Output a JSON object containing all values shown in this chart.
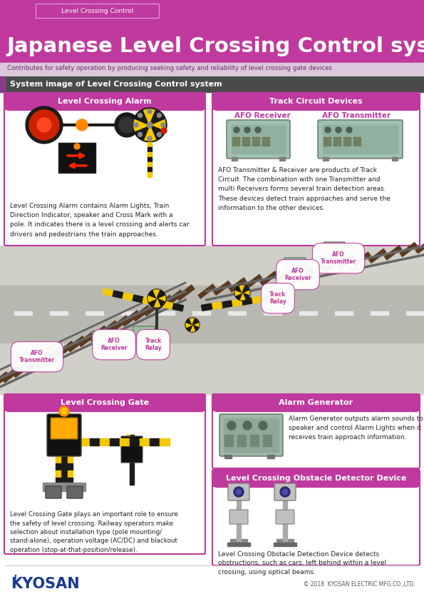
{
  "title": "Japanese Level Crossing Control system",
  "subtitle": "Contributes for safety operation by producing seeking safety and reliability of level crossing gate devices",
  "header_tag": "Level Crossing Control",
  "header_bg": "#c0399e",
  "subtitle_bg": "#e8d5e8",
  "system_bar_text": "System image of Level Crossing Control system",
  "system_bar_bg": "#4a4a4a",
  "system_bar_accent": "#8b3a8b",
  "box_border": "#c0399e",
  "box_title_bg": "#c0399e",
  "box_title_color": "#ffffff",
  "section1_title": "Level Crossing Alarm",
  "section1_text": "Level Crossing Alarm contains Alarm Lights, Train\nDirection Indicator, speaker and Cross Mark with a\npole. It indicates there is a level crossing and alerts car\ndrivers and pedestrians the train approaches.",
  "section2_title": "Track Circuit Devices",
  "section2_label1": "AFO Receiver",
  "section2_label2": "AFO Transmitter",
  "section2_text": "AFO Transmitter & Receiver are products of Track\nCircuit. The combination with one Transmitter and\nmulti Receivers forms several train detection areas.\nThese devices detect train approaches and serve the\ninformation to the other devices.",
  "section3_title": "Level Crossing Gate",
  "section3_text": "Level Crossing Gate plays an important role to ensure\nthe safety of level crossing. Railway operators make\nselection about installation type (pole mounting/\nstand-alone), operation voltage (AC/DC) and blackout\noperation (stop-at-that-position/release).",
  "section4_title": "Alarm Generator",
  "section4_text": "Alarm Generator outputs alarm sounds to\nspeaker and control Alarm Lights when it\nreceives train approach information.",
  "section5_title": "Level Crossing Obstacle Detector Device",
  "section5_text": "Level Crossing Obstacle Detection Device detects\nobstructions, such as cars, left behind within a level\ncrossing, using optical beams.",
  "footer_brand": "KYOSAN",
  "footer_brand_color": "#1a3a8f",
  "footer_copy": "© 2018  KYOSAN ELECTRIC MFG.CO.,LTD.",
  "footer_copy_color": "#555555",
  "label_afo_receiver": "AFO\nReceiver",
  "label_track_relay1": "Track\nRelay",
  "label_afo_transmitter1": "AFO\nTransmitter",
  "label_afo_receiver2": "AFO\nReceiver",
  "label_track_relay2": "Track\nRelay",
  "label_color": "#c0399e",
  "white": "#ffffff",
  "light_gray": "#f5f5f5",
  "mid_gray": "#cccccc",
  "dark_gray": "#333333",
  "text_dark": "#222222",
  "text_small": "#444444",
  "teal": "#7ab8a8",
  "teal_dark": "#5a9888"
}
